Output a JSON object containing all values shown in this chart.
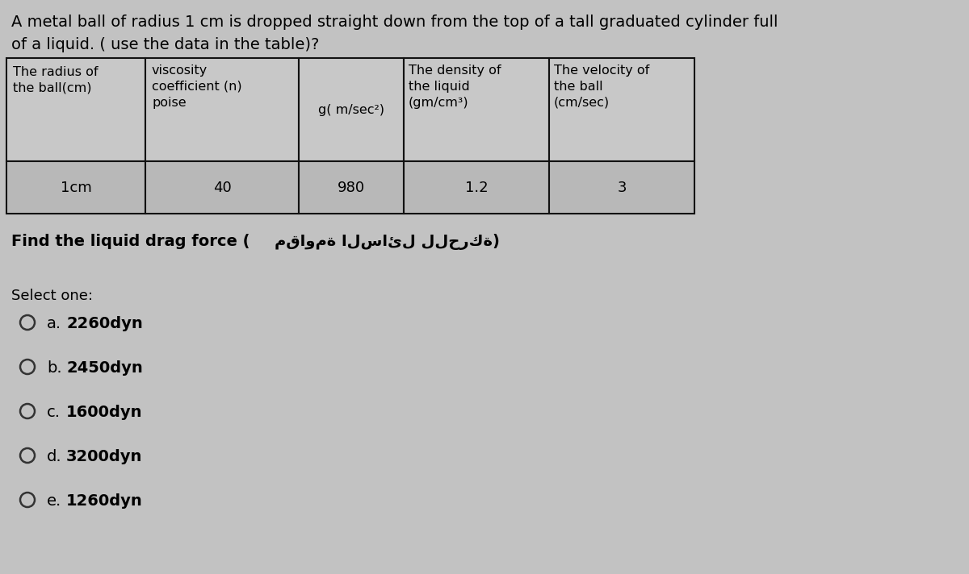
{
  "title_line1": "A metal ball of radius 1 cm is dropped straight down from the top of a tall graduated cylinder full",
  "title_line2": "of a liquid. ( use the data in the table)?",
  "header_col0_line1": "The radius of",
  "header_col0_line2": "the ball(cm)",
  "header_col1_line1": "viscosity",
  "header_col1_line2": "coefficient (n)",
  "header_col1_line3": "poise",
  "header_col2": "g( m/sec",
  "header_col2_sup": "2",
  "header_col3_line1": "The density of",
  "header_col3_line2": "the liquid",
  "header_col3_line3": "(gm/cm³)",
  "header_col4_line1": "The velocity of",
  "header_col4_line2": "the ball",
  "header_col4_line3": "(cm/sec)",
  "data_row": [
    "1cm",
    "40",
    "980",
    "1.2",
    "3"
  ],
  "question_en": "Find the liquid drag force (",
  "question_ar": "مقاومة السائل للحركة",
  "question_close": ")",
  "select_label": "Select one:",
  "options": [
    {
      "label": "a.",
      "text": "2260dyn"
    },
    {
      "label": "b.",
      "text": "2450dyn"
    },
    {
      "label": "c.",
      "text": "1600dyn"
    },
    {
      "label": "d.",
      "text": "3200dyn"
    },
    {
      "label": "e.",
      "text": "1260dyn"
    }
  ],
  "bg_color": "#c2c2c2",
  "table_header_color": "#c8c8c8",
  "table_data_color": "#b8b8b8",
  "border_color": "#111111",
  "title_fontsize": 14,
  "table_header_fontsize": 11.5,
  "table_data_fontsize": 13,
  "question_fontsize": 14,
  "select_fontsize": 13,
  "option_fontsize": 14
}
